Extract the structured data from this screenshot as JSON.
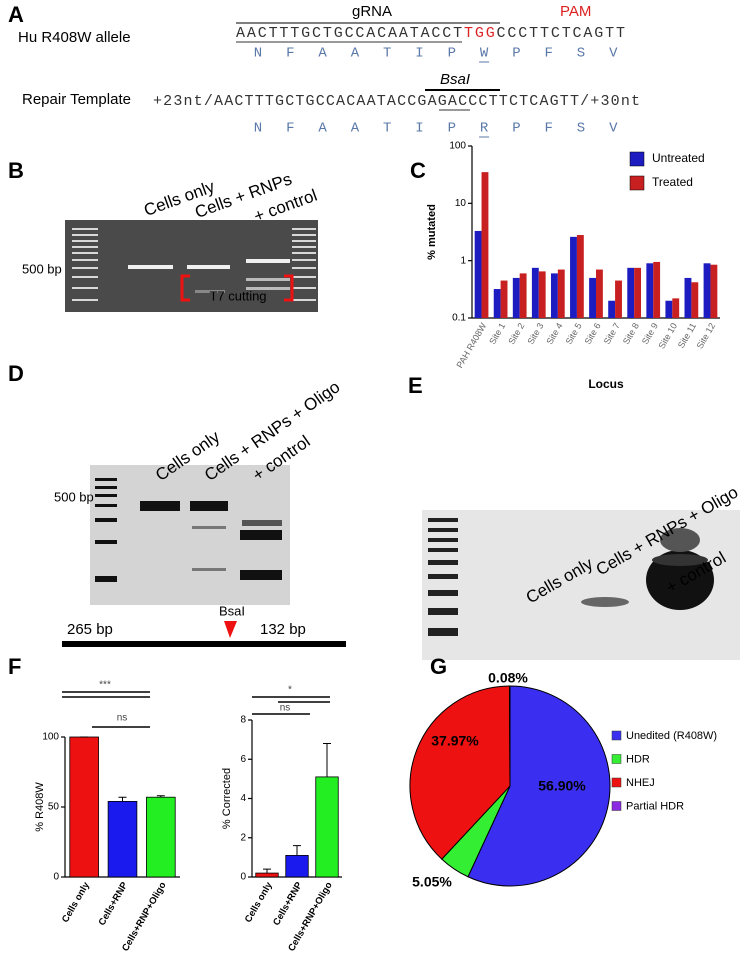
{
  "figure": {
    "panels": {
      "a": {
        "label": "A",
        "allele_label": "Hu R408W allele",
        "grna": "gRNA",
        "pam": "PAM",
        "allele_seq": {
          "protospacer": "AACTTTGCTGCCACAATACCT",
          "pam_site": "TGG",
          "rest": "CCCTTCTCAGTT"
        },
        "allele_aa": [
          "N",
          "F",
          "A",
          "A",
          "T",
          "I",
          "P",
          "W",
          "P",
          "F",
          "S",
          "V"
        ],
        "template_label": "Repair Template",
        "site": "BsaI",
        "template_seq": "+23nt/AACTTTGCTGCCACAATACCGAGACCCTTCTCAGTT/+30nt",
        "template_aa": [
          "N",
          "F",
          "A",
          "A",
          "T",
          "I",
          "P",
          "R",
          "P",
          "F",
          "S",
          "V"
        ]
      },
      "b": {
        "label": "B",
        "lanes": [
          "Cells only",
          "Cells + RNPs",
          "+ control"
        ],
        "size_label": "500 bp",
        "note": "T7 cutting"
      },
      "c": {
        "label": "C"
      },
      "d": {
        "label": "D",
        "lanes": [
          "Cells only",
          "Cells + RNPs + Oligo",
          "+ control"
        ],
        "size_label": "500 bp",
        "site": "BsaI",
        "left_fragment": "265 bp",
        "right_fragment": "132 bp"
      },
      "e": {
        "label": "E",
        "lanes": [
          "Cells only",
          "Cells + RNPs + Oligo",
          "+ control"
        ]
      },
      "f": {
        "label": "F"
      },
      "g": {
        "label": "G"
      }
    }
  },
  "chart_data": [
    {
      "type": "bar",
      "y_label": "% mutated",
      "x_label": "Locus",
      "categories": [
        "PAH R408W",
        "Site 1",
        "Site 2",
        "Site 3",
        "Site 4",
        "Site 5",
        "Site 6",
        "Site 7",
        "Site 8",
        "Site 9",
        "Site 10",
        "Site 11",
        "Site 12"
      ],
      "series": [
        {
          "name": "Untreated",
          "color": "#1c1cc0",
          "values": [
            3.3,
            0.32,
            0.5,
            0.75,
            0.6,
            2.6,
            0.5,
            0.2,
            0.75,
            0.9,
            0.2,
            0.5,
            0.9
          ]
        },
        {
          "name": "Treated",
          "color": "#c82020",
          "values": [
            35,
            0.45,
            0.6,
            0.65,
            0.7,
            2.8,
            0.7,
            0.45,
            0.75,
            0.95,
            0.22,
            0.42,
            0.85
          ]
        }
      ],
      "ylim": [
        0.1,
        100
      ],
      "yticks": [
        0.1,
        1,
        10,
        100
      ],
      "log_scale": true,
      "legend": "top-right"
    },
    {
      "type": "bar",
      "y_label": "% R408W",
      "categories": [
        "Cells only",
        "Cells+RNP",
        "Cells+RNP+Oligo"
      ],
      "values": [
        100,
        54,
        57
      ],
      "errors": [
        0,
        3,
        1
      ],
      "colors": [
        "#ee1111",
        "#1a1aee",
        "#22ee22"
      ],
      "ylim": [
        0,
        100
      ],
      "yticks": [
        0,
        50,
        100
      ],
      "annotations": [
        "***",
        "ns"
      ]
    },
    {
      "type": "bar",
      "y_label": "% Corrected",
      "categories": [
        "Cells only",
        "Cells+RNP",
        "Cells+RNP+Oligo"
      ],
      "values": [
        0.2,
        1.1,
        5.1
      ],
      "errors": [
        0.2,
        0.5,
        1.7
      ],
      "colors": [
        "#ee1111",
        "#1a1aee",
        "#22ee22"
      ],
      "ylim": [
        0,
        8
      ],
      "yticks": [
        0,
        2,
        4,
        6,
        8
      ],
      "annotations": [
        "*",
        "ns"
      ]
    },
    {
      "type": "pie",
      "categories": [
        "Unedited (R408W)",
        "HDR",
        "NHEJ",
        "Partial HDR"
      ],
      "values": [
        56.9,
        5.05,
        37.97,
        0.08
      ],
      "value_labels": [
        "56.90%",
        "5.05%",
        "37.97%",
        "0.08%"
      ],
      "colors": [
        "#3a2ff0",
        "#33ee33",
        "#ee1111",
        "#8a2be2"
      ]
    }
  ]
}
